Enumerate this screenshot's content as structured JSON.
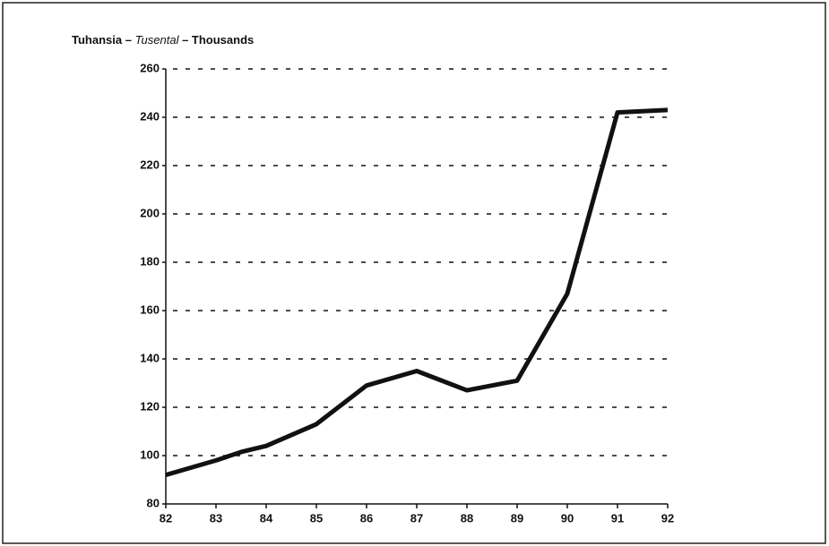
{
  "chart_data": {
    "type": "line",
    "ylabel": [
      "Tuhansia – ",
      "Tusental",
      " – Thousands"
    ],
    "x": [
      82,
      83,
      83.5,
      84,
      85,
      86,
      87,
      88,
      88.5,
      89,
      90,
      91,
      92
    ],
    "series": [
      {
        "color": "#111111",
        "values": [
          92,
          98,
          101.5,
          104,
          113,
          129,
          135,
          127,
          129,
          131,
          167,
          242,
          243
        ]
      }
    ],
    "xlim": [
      82,
      92
    ],
    "xticks": [
      82,
      83,
      84,
      85,
      86,
      87,
      88,
      89,
      90,
      91,
      92
    ],
    "ylim": [
      80,
      260
    ],
    "yticks": [
      80,
      100,
      120,
      140,
      160,
      180,
      200,
      220,
      240,
      260
    ],
    "grid": true
  }
}
